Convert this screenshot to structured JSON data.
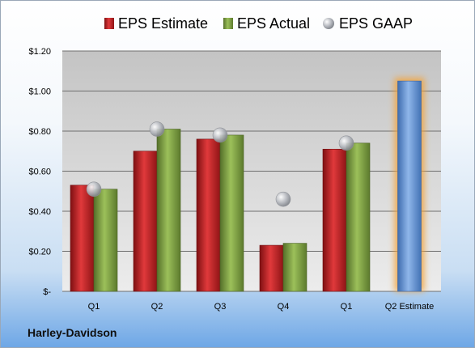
{
  "chart_data": {
    "type": "bar",
    "categories": [
      "Q1",
      "Q2",
      "Q3",
      "Q4",
      "Q1",
      "Q2 Estimate"
    ],
    "series": [
      {
        "name": "EPS Estimate",
        "type": "bar",
        "color": "#c0282a",
        "values": [
          0.53,
          0.7,
          0.76,
          0.23,
          0.71,
          null
        ]
      },
      {
        "name": "EPS Actual",
        "type": "bar",
        "color": "#7fa23f",
        "values": [
          0.51,
          0.81,
          0.78,
          0.24,
          0.74,
          null
        ]
      },
      {
        "name": "EPS GAAP",
        "type": "scatter",
        "color": "#a9acb1",
        "values": [
          0.51,
          0.81,
          0.78,
          0.46,
          0.74,
          null
        ]
      },
      {
        "name": "",
        "type": "bar",
        "color": "#5c8fd0",
        "highlight": "#f2a33a",
        "values": [
          null,
          null,
          null,
          null,
          null,
          1.05
        ]
      }
    ],
    "yticks": [
      "$-",
      "$0.20",
      "$0.40",
      "$0.60",
      "$0.80",
      "$1.00",
      "$1.20"
    ],
    "ylim": [
      0,
      1.2
    ],
    "grid": true,
    "legend": "top",
    "xlabel": "",
    "ylabel": ""
  },
  "company": "Harley-Davidson"
}
